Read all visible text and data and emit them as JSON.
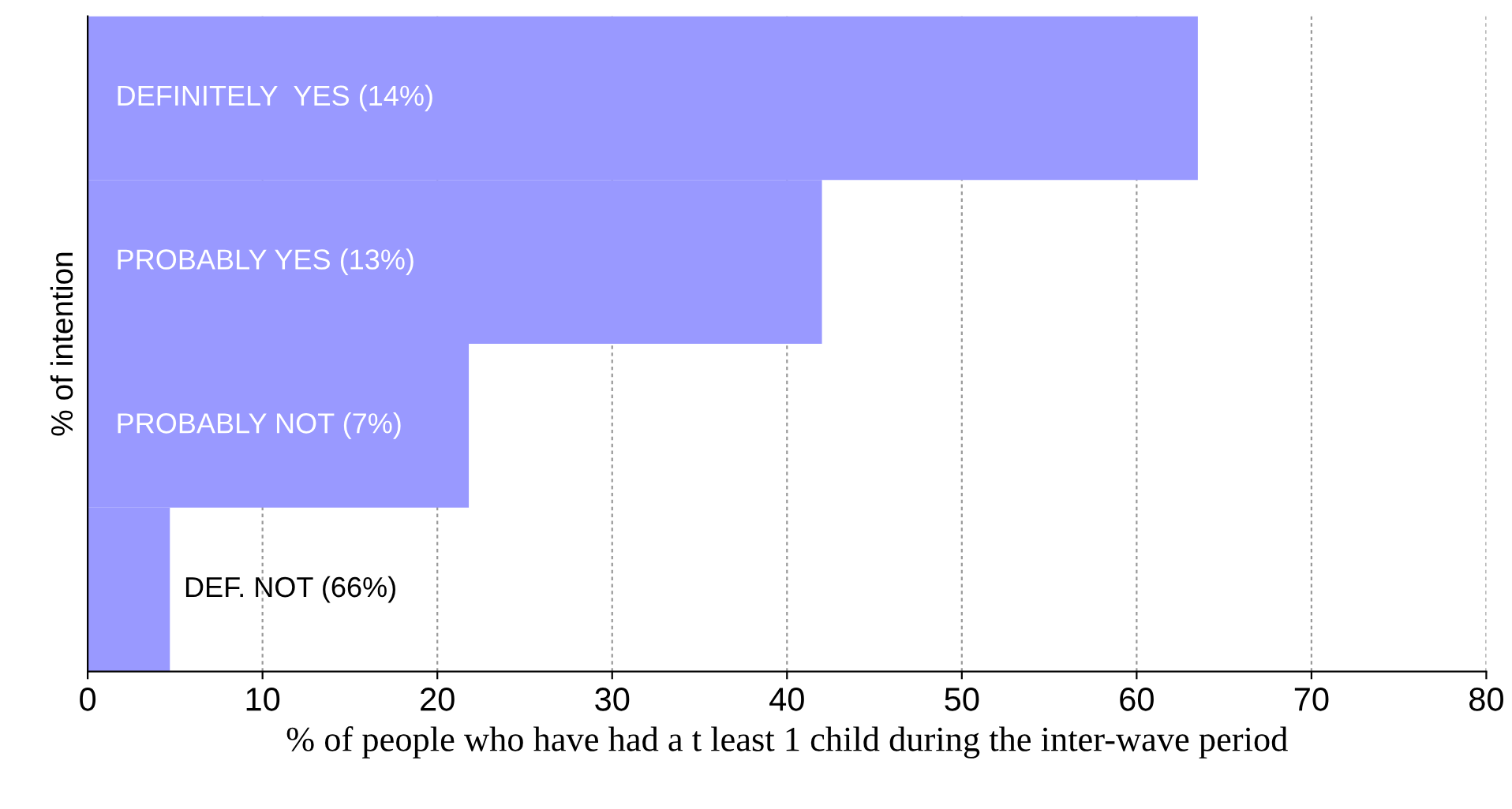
{
  "chart_data": {
    "type": "bar",
    "orientation": "horizontal",
    "categories": [
      "DEFINITELY  YES (14%)",
      "PROBABLY YES (13%)",
      "PROBABLY NOT (7%)",
      "DEF. NOT (66%)"
    ],
    "values": [
      63.5,
      42,
      21.8,
      4.7
    ],
    "color": "#9999ff",
    "xlabel": "% of people who have had a t least 1 child during the inter-wave period",
    "ylabel": "% of intention",
    "xlim": [
      0,
      80
    ],
    "xticks": [
      0,
      10,
      20,
      30,
      40,
      50,
      60,
      70,
      80
    ],
    "grid": "x",
    "tick_labels": "x"
  }
}
